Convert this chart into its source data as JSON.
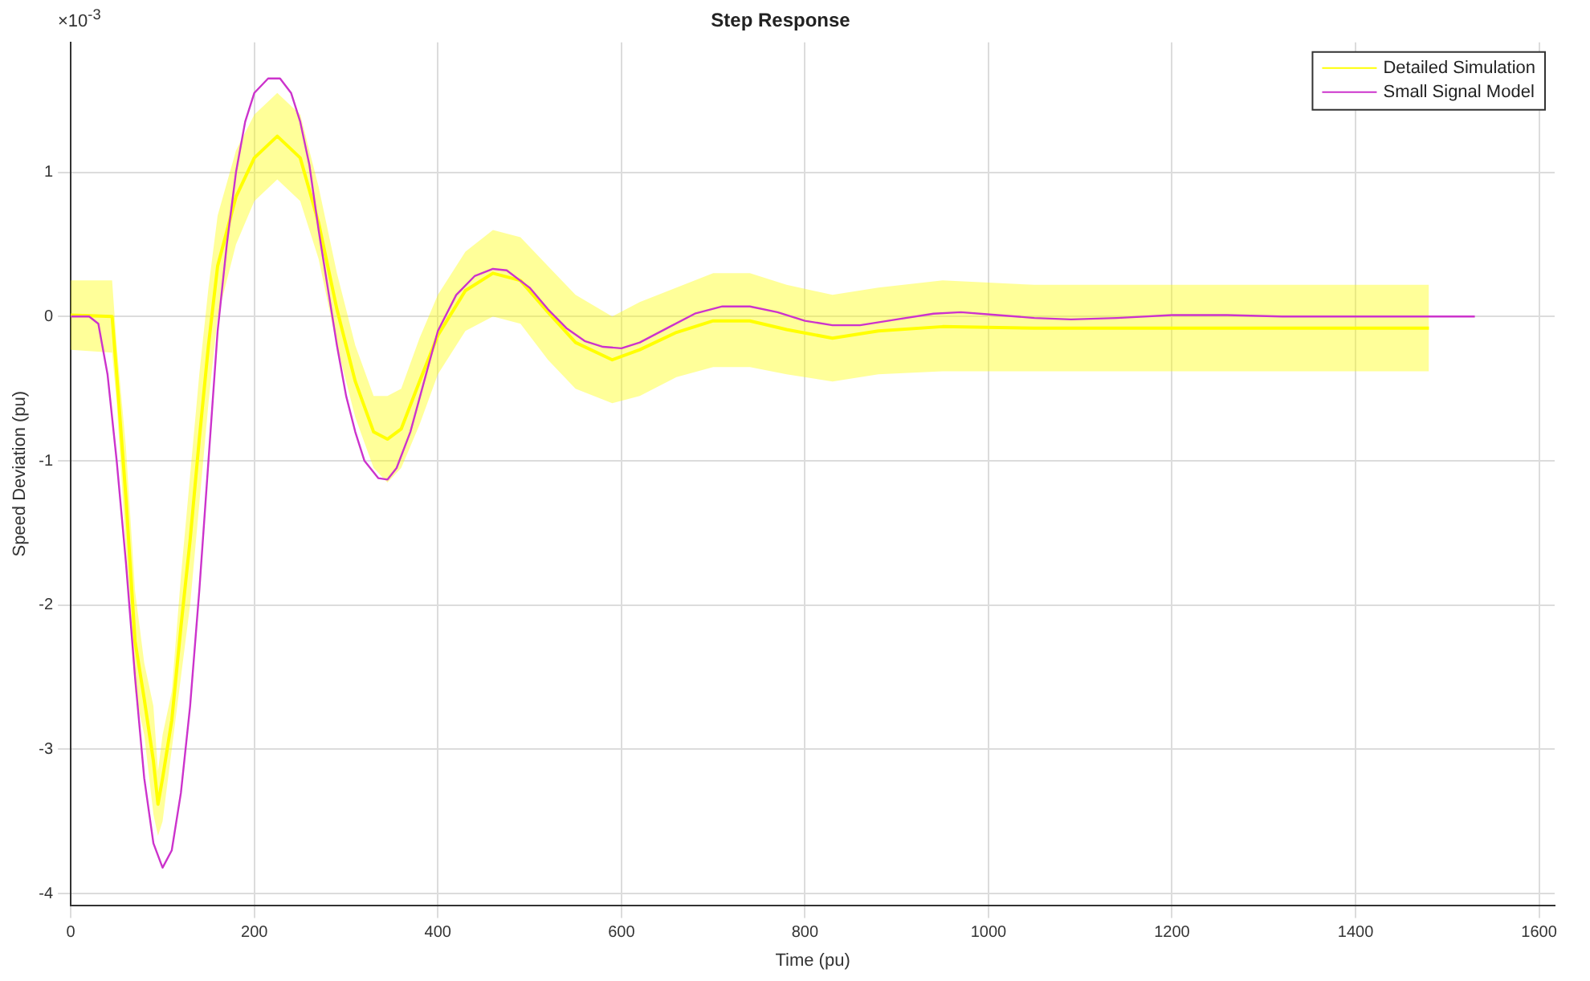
{
  "chart_data": {
    "type": "line",
    "title": "Step Response",
    "xlabel": "Time (pu)",
    "ylabel": "Speed Deviation (pu)",
    "annotations": [
      "×10$^{-3}$"
    ],
    "xlim": [
      0,
      1617
    ],
    "xticks": [
      0,
      200,
      400,
      600,
      800,
      1000,
      1200,
      1400,
      1600
    ],
    "ylim": [
      -4.08,
      1.9
    ],
    "yticks": [
      -4,
      -3,
      -2,
      -1,
      0,
      1
    ],
    "grid": true,
    "legend": "top right",
    "series": [
      {
        "name": "Detailed Simulation",
        "color": "#ffff00",
        "x": [
          0,
          45,
          50,
          60,
          70,
          80,
          90,
          95,
          100,
          110,
          120,
          130,
          140,
          150,
          160,
          180,
          200,
          225,
          250,
          270,
          290,
          310,
          330,
          345,
          360,
          380,
          400,
          430,
          460,
          490,
          520,
          550,
          590,
          620,
          660,
          700,
          740,
          780,
          830,
          880,
          950,
          1050,
          1200,
          1400,
          1480
        ],
        "values": [
          0.01,
          0,
          -0.4,
          -1.25,
          -2.25,
          -2.65,
          -3.08,
          -3.38,
          -3.2,
          -2.8,
          -2.15,
          -1.55,
          -0.85,
          -0.2,
          0.35,
          0.83,
          1.1,
          1.25,
          1.1,
          0.65,
          0.05,
          -0.45,
          -0.8,
          -0.85,
          -0.78,
          -0.45,
          -0.13,
          0.18,
          0.3,
          0.25,
          0.03,
          -0.18,
          -0.3,
          -0.23,
          -0.11,
          -0.03,
          -0.03,
          -0.09,
          -0.15,
          -0.1,
          -0.07,
          -0.08,
          -0.08,
          -0.08,
          -0.08
        ],
        "lower": [
          -0.23,
          -0.25,
          -0.6,
          -1.6,
          -2.6,
          -2.9,
          -3.45,
          -3.6,
          -3.5,
          -3.0,
          -2.5,
          -2.0,
          -1.3,
          -0.6,
          0.0,
          0.5,
          0.8,
          0.95,
          0.8,
          0.4,
          -0.2,
          -0.7,
          -1.05,
          -1.15,
          -1.05,
          -0.75,
          -0.4,
          -0.1,
          0.0,
          -0.05,
          -0.3,
          -0.5,
          -0.6,
          -0.55,
          -0.42,
          -0.35,
          -0.35,
          -0.4,
          -0.45,
          -0.4,
          -0.38,
          -0.38,
          -0.38,
          -0.38,
          -0.38
        ],
        "upper": [
          0.25,
          0.25,
          -0.2,
          -0.9,
          -1.9,
          -2.4,
          -2.7,
          -3.15,
          -2.9,
          -2.6,
          -1.8,
          -1.1,
          -0.4,
          0.2,
          0.7,
          1.15,
          1.4,
          1.55,
          1.4,
          0.9,
          0.3,
          -0.2,
          -0.55,
          -0.55,
          -0.5,
          -0.15,
          0.15,
          0.45,
          0.6,
          0.55,
          0.35,
          0.15,
          0.0,
          0.1,
          0.2,
          0.3,
          0.3,
          0.22,
          0.15,
          0.2,
          0.25,
          0.22,
          0.22,
          0.22,
          0.22
        ]
      },
      {
        "name": "Small Signal Model",
        "color": "#cc33cc",
        "x": [
          0,
          20,
          30,
          40,
          50,
          60,
          70,
          80,
          90,
          100,
          110,
          120,
          130,
          140,
          150,
          160,
          170,
          180,
          190,
          200,
          215,
          228,
          240,
          250,
          260,
          270,
          280,
          290,
          300,
          310,
          320,
          335,
          345,
          355,
          370,
          385,
          400,
          420,
          440,
          460,
          475,
          500,
          520,
          540,
          560,
          580,
          600,
          620,
          650,
          680,
          710,
          740,
          770,
          800,
          830,
          860,
          900,
          940,
          970,
          1010,
          1050,
          1090,
          1140,
          1200,
          1260,
          1320,
          1400,
          1530
        ],
        "values": [
          0,
          0,
          -0.05,
          -0.4,
          -1.0,
          -1.7,
          -2.5,
          -3.2,
          -3.65,
          -3.82,
          -3.7,
          -3.3,
          -2.7,
          -1.9,
          -1.0,
          -0.1,
          0.5,
          1.0,
          1.35,
          1.55,
          1.65,
          1.65,
          1.55,
          1.35,
          1.05,
          0.6,
          0.2,
          -0.2,
          -0.55,
          -0.8,
          -1.0,
          -1.12,
          -1.13,
          -1.05,
          -0.8,
          -0.45,
          -0.1,
          0.15,
          0.28,
          0.33,
          0.32,
          0.2,
          0.05,
          -0.08,
          -0.17,
          -0.21,
          -0.22,
          -0.18,
          -0.08,
          0.02,
          0.07,
          0.07,
          0.03,
          -0.03,
          -0.06,
          -0.06,
          -0.02,
          0.02,
          0.03,
          0.01,
          -0.01,
          -0.02,
          -0.01,
          0.01,
          0.01,
          0,
          0,
          0
        ]
      }
    ]
  }
}
